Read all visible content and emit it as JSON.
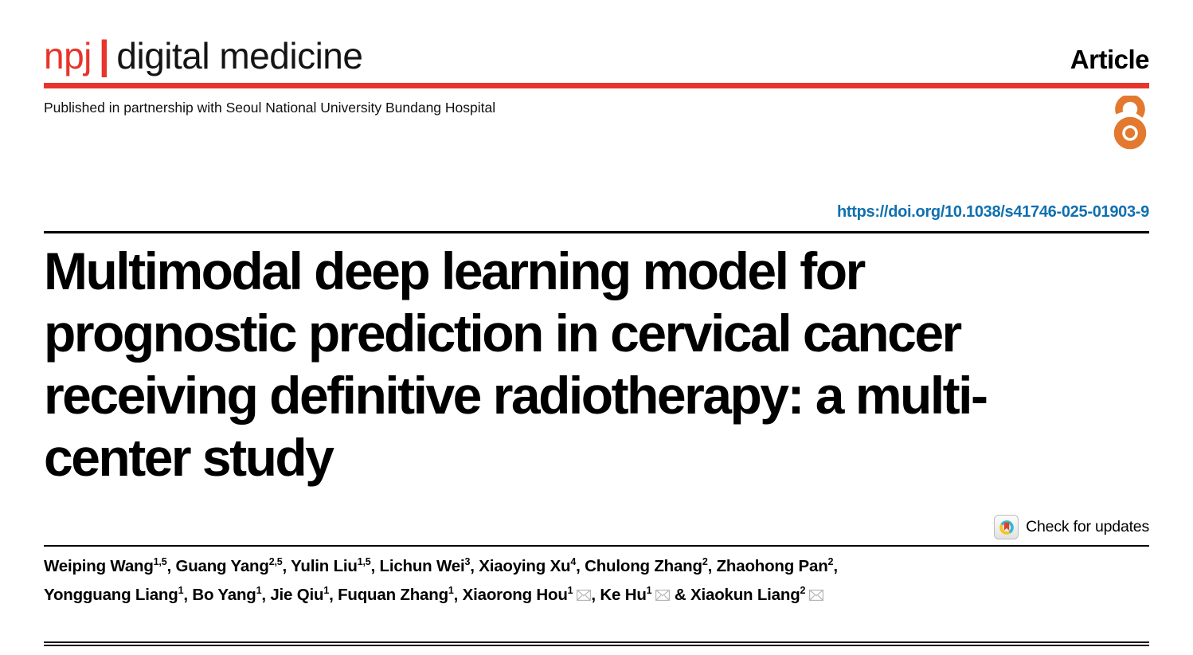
{
  "masthead": {
    "brand": "npj",
    "divider": "|",
    "journal_name": "digital medicine",
    "article_type": "Article",
    "partnership": "Published in partnership with Seoul National University Bundang Hospital"
  },
  "doi": "https://doi.org/10.1038/s41746-025-01903-9",
  "title": {
    "lines": [
      "Multimodal deep learning model for",
      "prognostic prediction in cervical cancer",
      "receiving definitive radiotherapy: a multi-",
      "center study"
    ]
  },
  "check_for_updates": {
    "label": "Check for updates"
  },
  "authors": {
    "line1": [
      {
        "name": "Weiping Wang",
        "sup": "1,5",
        "sep": ", "
      },
      {
        "name": "Guang Yang",
        "sup": "2,5",
        "sep": ", "
      },
      {
        "name": "Yulin Liu",
        "sup": "1,5",
        "sep": ", "
      },
      {
        "name": "Lichun Wei",
        "sup": "3",
        "sep": ", "
      },
      {
        "name": "Xiaoying Xu",
        "sup": "4",
        "sep": ", "
      },
      {
        "name": "Chulong Zhang",
        "sup": "2",
        "sep": ", "
      },
      {
        "name": "Zhaohong Pan",
        "sup": "2",
        "sep": ","
      }
    ],
    "line2": [
      {
        "name": "Yongguang Liang",
        "sup": "1",
        "sep": ", "
      },
      {
        "name": "Bo Yang",
        "sup": "1",
        "sep": ", "
      },
      {
        "name": "Jie Qiu",
        "sup": "1",
        "sep": ", "
      },
      {
        "name": "Fuquan Zhang",
        "sup": "1",
        "sep": ", "
      },
      {
        "name": "Xiaorong Hou",
        "sup": "1",
        "mail": true,
        "sep": ", "
      },
      {
        "name": "Ke Hu",
        "sup": "1",
        "mail": true,
        "sep": " & "
      },
      {
        "name": "Xiaokun Liang",
        "sup": "2",
        "mail": true,
        "sep": ""
      }
    ]
  },
  "icons": {
    "open_access": "open-access-lock",
    "crossmark": "crossmark-check-for-updates",
    "mail": "envelope-correspondence"
  },
  "colors": {
    "brand_red": "#e7352b",
    "doi_link_blue": "#1070b0",
    "open_access_orange": "#e2792e",
    "crossmark_teal": "#2fb9d3",
    "crossmark_yellow": "#f6c51e",
    "crossmark_bookmark_red": "#e04232"
  }
}
